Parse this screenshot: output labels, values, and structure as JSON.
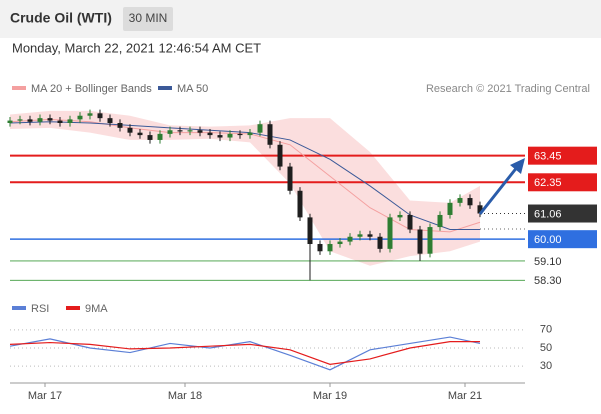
{
  "header": {
    "title": "Crude Oil (WTI)",
    "interval": "30 MIN",
    "datetime": "Monday, March 22, 2021 12:46:54 AM CET"
  },
  "chart_data": [
    {
      "type": "candlestick",
      "credit": "Research © 2021 Trading Central",
      "x": [
        0,
        2,
        4,
        6,
        8,
        10,
        12,
        14,
        16,
        18,
        20,
        22,
        24,
        26,
        28,
        30,
        32,
        34,
        36,
        38,
        40,
        42,
        44,
        46,
        48,
        50,
        52,
        54,
        56,
        58,
        60,
        62,
        64,
        66,
        68,
        70,
        72,
        74,
        76,
        78,
        80,
        82,
        84,
        86,
        88,
        90,
        92,
        94
      ],
      "open": [
        64.8,
        64.9,
        64.95,
        64.85,
        65.0,
        64.9,
        64.8,
        64.95,
        65.1,
        65.2,
        65.0,
        64.8,
        64.6,
        64.4,
        64.3,
        64.1,
        64.35,
        64.5,
        64.45,
        64.5,
        64.4,
        64.3,
        64.2,
        64.35,
        64.3,
        64.4,
        64.75,
        63.9,
        63.0,
        62.0,
        60.9,
        59.8,
        59.5,
        59.8,
        59.9,
        60.1,
        60.2,
        60.1,
        59.6,
        60.9,
        61.0,
        60.4,
        59.4,
        60.5,
        61.0,
        61.5,
        61.7,
        61.4
      ],
      "high": [
        65.05,
        65.1,
        65.1,
        65.15,
        65.15,
        65.05,
        65.1,
        65.25,
        65.35,
        65.35,
        65.15,
        64.95,
        64.75,
        64.55,
        64.45,
        64.5,
        64.65,
        64.65,
        64.65,
        64.65,
        64.55,
        64.45,
        64.5,
        64.5,
        64.55,
        64.9,
        64.9,
        64.05,
        63.15,
        62.15,
        61.05,
        59.95,
        59.95,
        60.05,
        60.25,
        60.35,
        60.35,
        60.25,
        61.05,
        61.15,
        61.15,
        60.55,
        60.65,
        61.15,
        61.65,
        61.85,
        61.85,
        61.55
      ],
      "low": [
        64.65,
        64.75,
        64.7,
        64.7,
        64.75,
        64.65,
        64.65,
        64.8,
        64.95,
        64.85,
        64.65,
        64.45,
        64.25,
        64.15,
        63.95,
        63.95,
        64.2,
        64.3,
        64.3,
        64.25,
        64.15,
        64.05,
        64.05,
        64.15,
        64.15,
        64.25,
        63.75,
        62.85,
        61.85,
        60.75,
        58.3,
        59.35,
        59.35,
        59.65,
        59.75,
        59.95,
        59.95,
        59.45,
        59.45,
        60.75,
        60.25,
        59.1,
        59.25,
        60.35,
        60.85,
        61.35,
        61.25,
        60.91
      ],
      "close": [
        64.9,
        64.95,
        64.85,
        65.0,
        64.9,
        64.8,
        64.95,
        65.1,
        65.2,
        65.0,
        64.8,
        64.6,
        64.4,
        64.3,
        64.1,
        64.35,
        64.5,
        64.45,
        64.5,
        64.4,
        64.3,
        64.2,
        64.35,
        64.3,
        64.4,
        64.75,
        63.9,
        63.0,
        62.0,
        60.9,
        59.8,
        59.5,
        59.8,
        59.9,
        60.1,
        60.2,
        60.1,
        59.6,
        60.9,
        61.0,
        60.4,
        59.4,
        60.5,
        61.0,
        61.5,
        61.7,
        61.4,
        61.06
      ],
      "up_color": "#2e7d32",
      "down_color": "#1e1e1e",
      "overlays": {
        "x": [
          0,
          8,
          16,
          24,
          32,
          40,
          48,
          56,
          64,
          72,
          80,
          88,
          94
        ],
        "series": [
          {
            "name": "MA 20 + Bollinger Bands",
            "color": "#f4a0a0",
            "values": [
              64.85,
              64.95,
              64.85,
              64.6,
              64.4,
              64.4,
              64.35,
              63.9,
              62.6,
              61.3,
              60.4,
              60.3,
              60.7
            ],
            "upper": [
              65.15,
              65.3,
              65.3,
              65.1,
              64.7,
              64.65,
              64.7,
              65.0,
              65.0,
              63.6,
              61.6,
              61.5,
              62.2
            ],
            "lower": [
              64.55,
              64.6,
              64.4,
              64.1,
              64.1,
              64.15,
              64.0,
              62.3,
              59.5,
              58.9,
              59.3,
              59.5,
              59.9
            ]
          },
          {
            "name": "MA 50",
            "color": "#3b5998",
            "values": [
              64.8,
              64.85,
              64.8,
              64.7,
              64.6,
              64.5,
              64.4,
              64.1,
              63.3,
              62.2,
              61.0,
              60.4,
              60.4
            ]
          }
        ]
      },
      "levels": [
        {
          "value": 63.45,
          "color": "#e41c1c",
          "line_width": 2
        },
        {
          "value": 62.35,
          "color": "#e41c1c",
          "line_width": 2
        },
        {
          "value": 61.06,
          "color": "#333333",
          "line_width": 1
        },
        {
          "value": 60,
          "label": "60.00",
          "color": "#2f6fe0",
          "line_width": 1.5
        },
        {
          "value": 59.1,
          "label": "59.10",
          "color": "#3e9b3e",
          "line_width": 0.8
        },
        {
          "value": 58.3,
          "label": "58.30",
          "color": "#3e9b3e",
          "line_width": 0.8
        }
      ],
      "xlim": [
        0,
        103
      ],
      "ylim": [
        57.9,
        65.75
      ],
      "xticks": [
        {
          "value": 7,
          "label": "Mar 17"
        },
        {
          "value": 35,
          "label": "Mar 18"
        },
        {
          "value": 64,
          "label": "Mar 19"
        },
        {
          "value": 91,
          "label": "Mar 21"
        }
      ]
    },
    {
      "type": "line",
      "x": [
        0,
        8,
        16,
        24,
        32,
        40,
        48,
        56,
        64,
        72,
        80,
        88,
        94
      ],
      "series": [
        {
          "name": "RSI",
          "color": "#5b7fd6",
          "values": [
            52,
            60,
            50,
            45,
            55,
            50,
            57,
            42,
            26,
            48,
            55,
            62,
            55
          ]
        },
        {
          "name": "9MA",
          "color": "#e41c1c",
          "values": [
            54,
            56,
            54,
            49,
            50,
            52,
            54,
            48,
            32,
            38,
            50,
            57,
            57
          ]
        }
      ],
      "xlim": [
        0,
        103
      ],
      "ylim": [
        17,
        83
      ],
      "yticks": [
        70,
        50,
        30
      ]
    }
  ]
}
